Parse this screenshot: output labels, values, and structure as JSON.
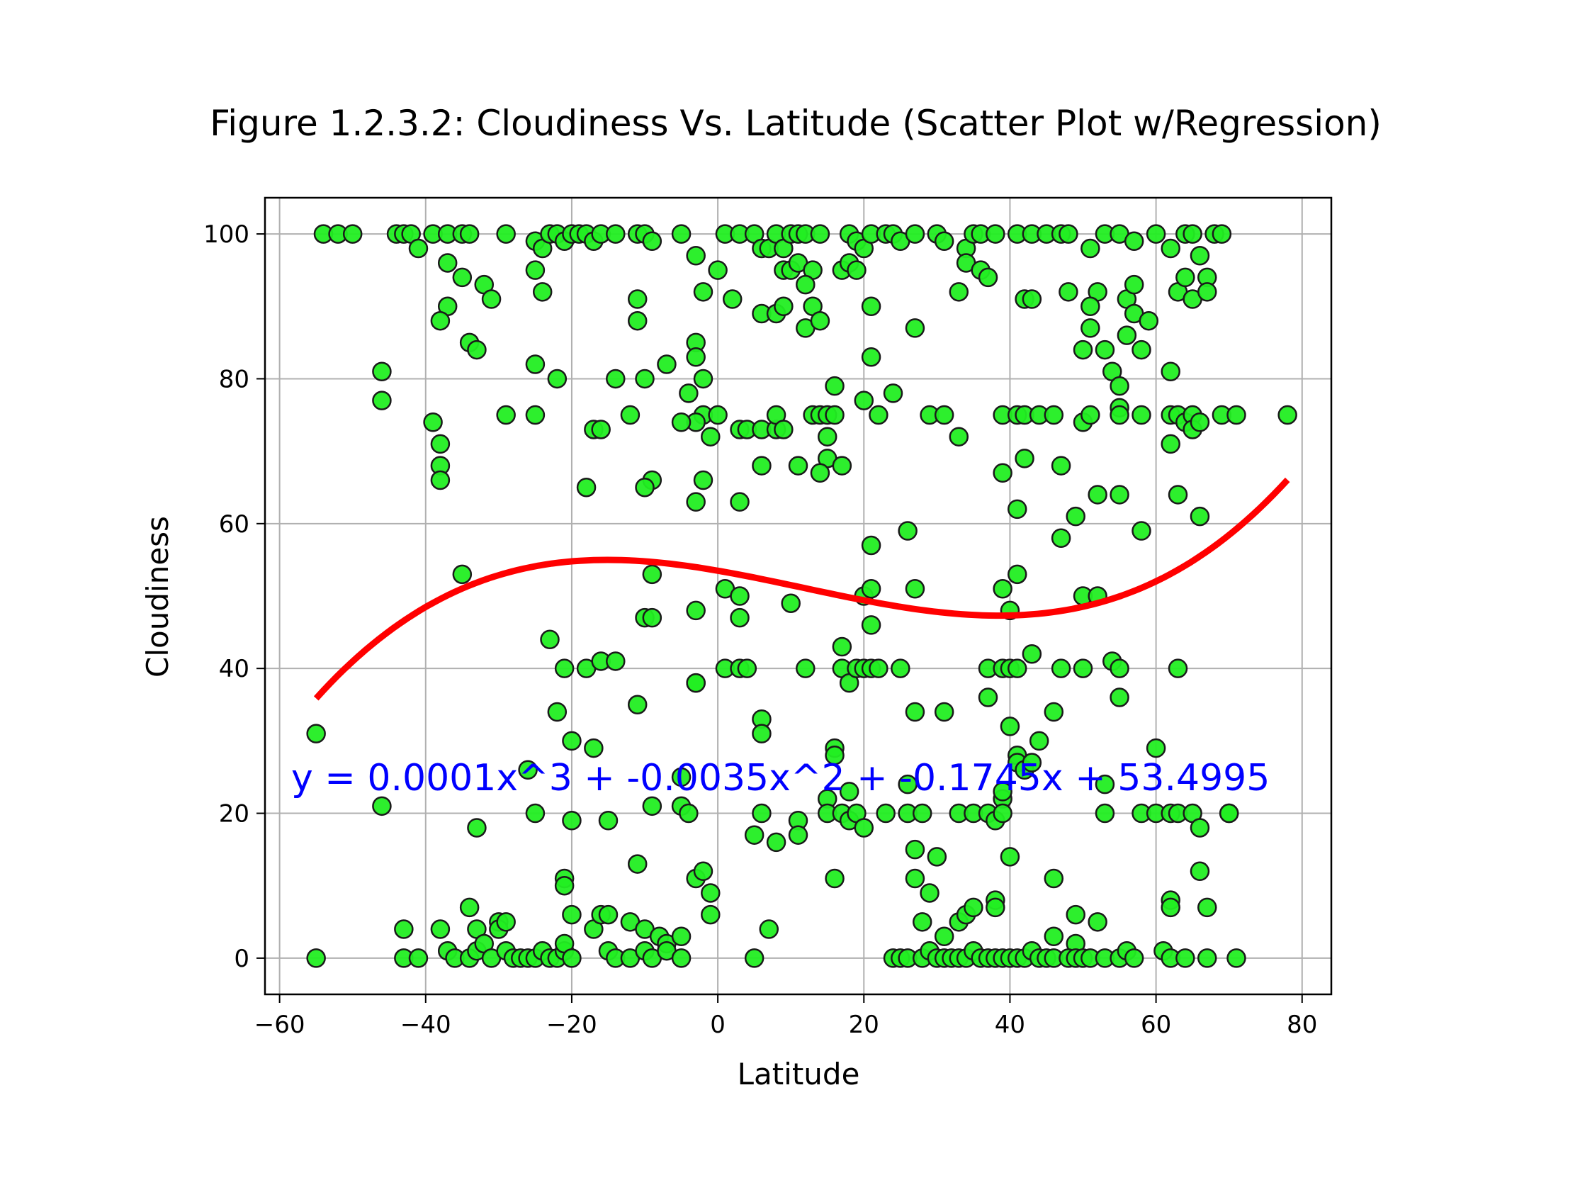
{
  "chart_data": {
    "type": "scatter",
    "title": "Figure 1.2.3.2: Cloudiness Vs. Latitude (Scatter Plot w/Regression)",
    "xlabel": "Latitude",
    "ylabel": "Cloudiness",
    "xlim": [
      -62,
      84
    ],
    "ylim": [
      -5,
      105
    ],
    "xticks": [
      -60,
      -40,
      -20,
      0,
      20,
      40,
      60,
      80
    ],
    "xtick_labels": [
      "−60",
      "−40",
      "−20",
      "0",
      "20",
      "40",
      "60",
      "80"
    ],
    "yticks": [
      0,
      20,
      40,
      60,
      80,
      100
    ],
    "ytick_labels": [
      "0",
      "20",
      "40",
      "60",
      "80",
      "100"
    ],
    "grid": true,
    "colors": {
      "marker_fill": "#22ee22",
      "marker_edge": "#1a1a1a",
      "regression": "#ff0000",
      "equation": "#0000ff"
    },
    "regression": {
      "equation_text": "y = 0.0001x^3 + -0.0035x^2 + -0.1745x + 53.4995",
      "coefficients": [
        0.0001,
        -0.0035,
        -0.1745,
        53.4995
      ],
      "x_range": [
        -55,
        78
      ]
    },
    "points": [
      [
        -54,
        100
      ],
      [
        -52,
        100
      ],
      [
        -50,
        100
      ],
      [
        -44,
        100
      ],
      [
        -43,
        100
      ],
      [
        -42,
        100
      ],
      [
        -39,
        100
      ],
      [
        -37,
        100
      ],
      [
        -35,
        100
      ],
      [
        -34,
        100
      ],
      [
        -29,
        100
      ],
      [
        -25,
        99
      ],
      [
        -24,
        98
      ],
      [
        -23,
        100
      ],
      [
        -22,
        100
      ],
      [
        -21,
        99
      ],
      [
        -20,
        100
      ],
      [
        -19,
        100
      ],
      [
        -18,
        100
      ],
      [
        -17,
        99
      ],
      [
        -16,
        100
      ],
      [
        -14,
        100
      ],
      [
        -11,
        100
      ],
      [
        -10,
        100
      ],
      [
        -9,
        99
      ],
      [
        -5,
        100
      ],
      [
        1,
        100
      ],
      [
        3,
        100
      ],
      [
        5,
        100
      ],
      [
        6,
        98
      ],
      [
        7,
        98
      ],
      [
        8,
        100
      ],
      [
        9,
        98
      ],
      [
        9,
        95
      ],
      [
        10,
        100
      ],
      [
        11,
        100
      ],
      [
        12,
        100
      ],
      [
        14,
        100
      ],
      [
        18,
        100
      ],
      [
        19,
        99
      ],
      [
        20,
        98
      ],
      [
        21,
        100
      ],
      [
        23,
        100
      ],
      [
        24,
        100
      ],
      [
        25,
        99
      ],
      [
        27,
        100
      ],
      [
        30,
        100
      ],
      [
        31,
        99
      ],
      [
        34,
        98
      ],
      [
        35,
        100
      ],
      [
        36,
        100
      ],
      [
        38,
        100
      ],
      [
        41,
        100
      ],
      [
        43,
        100
      ],
      [
        45,
        100
      ],
      [
        47,
        100
      ],
      [
        48,
        100
      ],
      [
        53,
        100
      ],
      [
        55,
        100
      ],
      [
        57,
        99
      ],
      [
        60,
        100
      ],
      [
        62,
        98
      ],
      [
        64,
        100
      ],
      [
        65,
        100
      ],
      [
        66,
        97
      ],
      [
        68,
        100
      ],
      [
        69,
        100
      ],
      [
        -41,
        98
      ],
      [
        -37,
        96
      ],
      [
        -35,
        94
      ],
      [
        -32,
        93
      ],
      [
        -31,
        91
      ],
      [
        -24,
        92
      ],
      [
        -25,
        95
      ],
      [
        -11,
        91
      ],
      [
        -11,
        88
      ],
      [
        -3,
        97
      ],
      [
        -2,
        92
      ],
      [
        0,
        95
      ],
      [
        2,
        91
      ],
      [
        6,
        89
      ],
      [
        8,
        89
      ],
      [
        9,
        90
      ],
      [
        10,
        95
      ],
      [
        11,
        96
      ],
      [
        13,
        95
      ],
      [
        12,
        93
      ],
      [
        13,
        90
      ],
      [
        17,
        95
      ],
      [
        18,
        96
      ],
      [
        19,
        95
      ],
      [
        21,
        90
      ],
      [
        33,
        92
      ],
      [
        34,
        96
      ],
      [
        36,
        95
      ],
      [
        37,
        94
      ],
      [
        42,
        91
      ],
      [
        43,
        91
      ],
      [
        48,
        92
      ],
      [
        51,
        98
      ],
      [
        52,
        92
      ],
      [
        51,
        90
      ],
      [
        56,
        91
      ],
      [
        56,
        86
      ],
      [
        57,
        93
      ],
      [
        57,
        89
      ],
      [
        59,
        88
      ],
      [
        63,
        92
      ],
      [
        64,
        94
      ],
      [
        65,
        91
      ],
      [
        67,
        94
      ],
      [
        67,
        92
      ],
      [
        -37,
        90
      ],
      [
        -38,
        88
      ],
      [
        -34,
        85
      ],
      [
        -33,
        84
      ],
      [
        -46,
        81
      ],
      [
        -46,
        77
      ],
      [
        -25,
        82
      ],
      [
        -22,
        80
      ],
      [
        -7,
        82
      ],
      [
        -14,
        80
      ],
      [
        -10,
        80
      ],
      [
        -3,
        85
      ],
      [
        -3,
        83
      ],
      [
        -2,
        80
      ],
      [
        -4,
        78
      ],
      [
        -2,
        75
      ],
      [
        -3,
        74
      ],
      [
        -5,
        74
      ],
      [
        0,
        75
      ],
      [
        -1,
        72
      ],
      [
        3,
        73
      ],
      [
        4,
        73
      ],
      [
        6,
        73
      ],
      [
        8,
        73
      ],
      [
        8,
        75
      ],
      [
        9,
        73
      ],
      [
        12,
        87
      ],
      [
        14,
        88
      ],
      [
        13,
        75
      ],
      [
        14,
        75
      ],
      [
        15,
        75
      ],
      [
        16,
        75
      ],
      [
        15,
        72
      ],
      [
        15,
        69
      ],
      [
        14,
        67
      ],
      [
        11,
        68
      ],
      [
        17,
        68
      ],
      [
        16,
        79
      ],
      [
        21,
        83
      ],
      [
        20,
        77
      ],
      [
        22,
        75
      ],
      [
        24,
        78
      ],
      [
        27,
        87
      ],
      [
        29,
        75
      ],
      [
        31,
        75
      ],
      [
        33,
        72
      ],
      [
        39,
        75
      ],
      [
        41,
        75
      ],
      [
        42,
        75
      ],
      [
        44,
        75
      ],
      [
        46,
        75
      ],
      [
        47,
        68
      ],
      [
        50,
        74
      ],
      [
        50,
        84
      ],
      [
        51,
        75
      ],
      [
        51,
        87
      ],
      [
        53,
        84
      ],
      [
        54,
        81
      ],
      [
        55,
        76
      ],
      [
        55,
        79
      ],
      [
        55,
        75
      ],
      [
        58,
        84
      ],
      [
        58,
        75
      ],
      [
        62,
        75
      ],
      [
        63,
        75
      ],
      [
        64,
        74
      ],
      [
        65,
        75
      ],
      [
        65,
        73
      ],
      [
        66,
        74
      ],
      [
        62,
        81
      ],
      [
        62,
        71
      ],
      [
        69,
        75
      ],
      [
        71,
        75
      ],
      [
        78,
        75
      ],
      [
        -39,
        74
      ],
      [
        -38,
        71
      ],
      [
        -38,
        68
      ],
      [
        -38,
        66
      ],
      [
        -29,
        75
      ],
      [
        -25,
        75
      ],
      [
        -17,
        73
      ],
      [
        -16,
        73
      ],
      [
        -12,
        75
      ],
      [
        -18,
        65
      ],
      [
        -9,
        66
      ],
      [
        -10,
        65
      ],
      [
        -3,
        63
      ],
      [
        -2,
        66
      ],
      [
        3,
        63
      ],
      [
        6,
        68
      ],
      [
        39,
        67
      ],
      [
        42,
        69
      ],
      [
        41,
        62
      ],
      [
        47,
        58
      ],
      [
        49,
        61
      ],
      [
        52,
        64
      ],
      [
        55,
        64
      ],
      [
        58,
        59
      ],
      [
        63,
        64
      ],
      [
        66,
        61
      ],
      [
        26,
        59
      ],
      [
        -35,
        53
      ],
      [
        -9,
        53
      ],
      [
        1,
        51
      ],
      [
        3,
        50
      ],
      [
        10,
        49
      ],
      [
        20,
        50
      ],
      [
        21,
        57
      ],
      [
        21,
        51
      ],
      [
        21,
        46
      ],
      [
        27,
        51
      ],
      [
        39,
        51
      ],
      [
        41,
        53
      ],
      [
        40,
        48
      ],
      [
        50,
        50
      ],
      [
        52,
        50
      ],
      [
        -10,
        47
      ],
      [
        -9,
        47
      ],
      [
        -3,
        48
      ],
      [
        3,
        47
      ],
      [
        -23,
        44
      ],
      [
        -21,
        40
      ],
      [
        -18,
        40
      ],
      [
        -16,
        41
      ],
      [
        -14,
        41
      ],
      [
        -3,
        38
      ],
      [
        -3,
        38
      ],
      [
        1,
        40
      ],
      [
        3,
        40
      ],
      [
        4,
        40
      ],
      [
        12,
        40
      ],
      [
        17,
        43
      ],
      [
        17,
        40
      ],
      [
        18,
        38
      ],
      [
        19,
        40
      ],
      [
        20,
        40
      ],
      [
        21,
        40
      ],
      [
        22,
        40
      ],
      [
        25,
        40
      ],
      [
        37,
        40
      ],
      [
        39,
        40
      ],
      [
        40,
        40
      ],
      [
        41,
        40
      ],
      [
        43,
        42
      ],
      [
        47,
        40
      ],
      [
        50,
        40
      ],
      [
        54,
        41
      ],
      [
        55,
        40
      ],
      [
        63,
        40
      ],
      [
        -55,
        31
      ],
      [
        -22,
        34
      ],
      [
        -20,
        30
      ],
      [
        -17,
        29
      ],
      [
        -11,
        35
      ],
      [
        6,
        33
      ],
      [
        6,
        31
      ],
      [
        16,
        29
      ],
      [
        16,
        28
      ],
      [
        27,
        34
      ],
      [
        31,
        34
      ],
      [
        37,
        36
      ],
      [
        40,
        32
      ],
      [
        41,
        28
      ],
      [
        41,
        27
      ],
      [
        44,
        30
      ],
      [
        46,
        34
      ],
      [
        55,
        36
      ],
      [
        60,
        29
      ],
      [
        -55,
        0
      ],
      [
        -46,
        21
      ],
      [
        -26,
        26
      ],
      [
        -25,
        20
      ],
      [
        -20,
        19
      ],
      [
        -15,
        19
      ],
      [
        -9,
        21
      ],
      [
        -5,
        21
      ],
      [
        -4,
        20
      ],
      [
        -5,
        25
      ],
      [
        6,
        20
      ],
      [
        5,
        17
      ],
      [
        11,
        19
      ],
      [
        11,
        17
      ],
      [
        15,
        22
      ],
      [
        15,
        20
      ],
      [
        17,
        20
      ],
      [
        18,
        23
      ],
      [
        18,
        19
      ],
      [
        19,
        20
      ],
      [
        20,
        18
      ],
      [
        23,
        20
      ],
      [
        26,
        24
      ],
      [
        26,
        20
      ],
      [
        28,
        20
      ],
      [
        33,
        20
      ],
      [
        35,
        20
      ],
      [
        37,
        20
      ],
      [
        39,
        22
      ],
      [
        38,
        19
      ],
      [
        39,
        20
      ],
      [
        39,
        23
      ],
      [
        40,
        14
      ],
      [
        42,
        26
      ],
      [
        43,
        27
      ],
      [
        53,
        24
      ],
      [
        53,
        20
      ],
      [
        58,
        20
      ],
      [
        60,
        20
      ],
      [
        62,
        20
      ],
      [
        63,
        20
      ],
      [
        65,
        20
      ],
      [
        66,
        18
      ],
      [
        70,
        20
      ],
      [
        70,
        20
      ],
      [
        -33,
        18
      ],
      [
        -21,
        11
      ],
      [
        -21,
        10
      ],
      [
        -20,
        6
      ],
      [
        -17,
        4
      ],
      [
        -16,
        6
      ],
      [
        -15,
        6
      ],
      [
        -12,
        5
      ],
      [
        -11,
        13
      ],
      [
        -10,
        4
      ],
      [
        -8,
        3
      ],
      [
        -7,
        2
      ],
      [
        -5,
        3
      ],
      [
        -3,
        11
      ],
      [
        -2,
        12
      ],
      [
        -1,
        9
      ],
      [
        -1,
        6
      ],
      [
        7,
        4
      ],
      [
        8,
        16
      ],
      [
        16,
        11
      ],
      [
        27,
        15
      ],
      [
        27,
        11
      ],
      [
        28,
        5
      ],
      [
        29,
        9
      ],
      [
        30,
        14
      ],
      [
        31,
        3
      ],
      [
        33,
        5
      ],
      [
        34,
        6
      ],
      [
        35,
        7
      ],
      [
        38,
        8
      ],
      [
        38,
        7
      ],
      [
        46,
        11
      ],
      [
        46,
        3
      ],
      [
        49,
        6
      ],
      [
        49,
        2
      ],
      [
        52,
        5
      ],
      [
        62,
        8
      ],
      [
        62,
        7
      ],
      [
        66,
        12
      ],
      [
        67,
        7
      ],
      [
        -43,
        4
      ],
      [
        -43,
        0
      ],
      [
        -41,
        0
      ],
      [
        -38,
        4
      ],
      [
        -37,
        1
      ],
      [
        -36,
        0
      ],
      [
        -34,
        7
      ],
      [
        -34,
        0
      ],
      [
        -33,
        4
      ],
      [
        -33,
        1
      ],
      [
        -32,
        2
      ],
      [
        -31,
        0
      ],
      [
        -30,
        5
      ],
      [
        -30,
        4
      ],
      [
        -29,
        5
      ],
      [
        -29,
        1
      ],
      [
        -28,
        0
      ],
      [
        -27,
        0
      ],
      [
        -26,
        0
      ],
      [
        -25,
        0
      ],
      [
        -24,
        1
      ],
      [
        -23,
        0
      ],
      [
        -22,
        0
      ],
      [
        -21,
        1
      ],
      [
        -21,
        2
      ],
      [
        -20,
        0
      ],
      [
        -15,
        1
      ],
      [
        -14,
        0
      ],
      [
        -12,
        0
      ],
      [
        -10,
        1
      ],
      [
        -9,
        0
      ],
      [
        -7,
        1
      ],
      [
        -5,
        0
      ],
      [
        5,
        0
      ],
      [
        24,
        0
      ],
      [
        25,
        0
      ],
      [
        26,
        0
      ],
      [
        28,
        0
      ],
      [
        29,
        1
      ],
      [
        30,
        0
      ],
      [
        31,
        0
      ],
      [
        32,
        0
      ],
      [
        33,
        0
      ],
      [
        34,
        0
      ],
      [
        35,
        1
      ],
      [
        36,
        0
      ],
      [
        37,
        0
      ],
      [
        38,
        0
      ],
      [
        39,
        0
      ],
      [
        40,
        0
      ],
      [
        41,
        0
      ],
      [
        42,
        0
      ],
      [
        43,
        1
      ],
      [
        44,
        0
      ],
      [
        45,
        0
      ],
      [
        46,
        0
      ],
      [
        48,
        0
      ],
      [
        49,
        0
      ],
      [
        50,
        0
      ],
      [
        51,
        0
      ],
      [
        53,
        0
      ],
      [
        55,
        0
      ],
      [
        56,
        1
      ],
      [
        57,
        0
      ],
      [
        61,
        1
      ],
      [
        62,
        0
      ],
      [
        64,
        0
      ],
      [
        67,
        0
      ],
      [
        71,
        0
      ]
    ]
  }
}
